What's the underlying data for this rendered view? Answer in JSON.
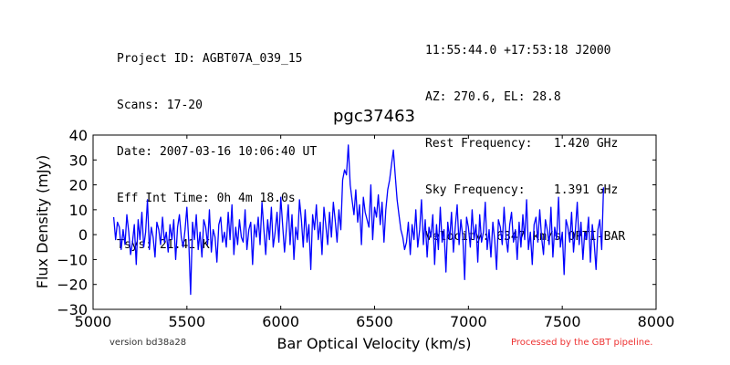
{
  "header_left": [
    "Project ID: AGBT07A_039_15",
    "Scans: 17-20",
    "Date: 2007-03-16 10:06:40 UT",
    "Eff Int Time: 0h 4m 18.0s",
    "Tsys: 21.41 K"
  ],
  "header_right": [
    "11:55:44.0 +17:53:18 J2000",
    "AZ: 270.6, EL: 28.8",
    "Rest Frequency:   1.420 GHz",
    "Sky Frequency:    1.391 GHz",
    "Velocity: 6347 km/s OPTI-BAR"
  ],
  "footer": {
    "version": "version bd38a28",
    "pipeline": "Processed by the GBT pipeline."
  },
  "colors": {
    "line": "#0000ff",
    "footer_version": "#333333",
    "footer_pipeline": "#ee3333"
  },
  "chart_data": {
    "type": "line",
    "title": "pgc37463",
    "xlabel": "Bar Optical Velocity (km/s)",
    "ylabel": "Flux Density (mJy)",
    "xlim": [
      5000,
      8000
    ],
    "ylim": [
      -30,
      40
    ],
    "xticks": [
      5000,
      5500,
      6000,
      6500,
      7000,
      7500,
      8000
    ],
    "yticks": [
      -30,
      -20,
      -10,
      0,
      10,
      20,
      30,
      40
    ],
    "grid": false,
    "series": [
      {
        "x_start": 5110,
        "x_step": 10,
        "y": [
          7,
          -2,
          5,
          3,
          -6,
          2,
          -4,
          8,
          1,
          -8,
          -3,
          4,
          -12,
          6,
          -2,
          9,
          -5,
          1,
          14,
          -6,
          3,
          -1,
          -9,
          5,
          2,
          -4,
          7,
          -3,
          1,
          -7,
          4,
          -2,
          6,
          -10,
          3,
          8,
          -1,
          -5,
          2,
          11,
          -3,
          -24,
          5,
          -2,
          8,
          -6,
          1,
          -9,
          6,
          3,
          -4,
          10,
          -7,
          2,
          -1,
          -11,
          4,
          7,
          -3,
          1,
          -5,
          9,
          -2,
          12,
          -8,
          3,
          -4,
          6,
          -1,
          -3,
          10,
          -6,
          2,
          5,
          -12,
          4,
          -1,
          7,
          -4,
          13,
          2,
          -8,
          6,
          -2,
          11,
          -5,
          1,
          9,
          -3,
          15,
          4,
          -7,
          2,
          12,
          -4,
          8,
          -10,
          3,
          -2,
          14,
          6,
          -5,
          10,
          -3,
          4,
          -14,
          8,
          2,
          12,
          -2,
          5,
          -8,
          11,
          4,
          -4,
          9,
          -1,
          13,
          6,
          -3,
          10,
          2,
          22,
          26,
          24,
          36,
          20,
          14,
          8,
          18,
          5,
          12,
          -4,
          15,
          9,
          6,
          3,
          20,
          -2,
          11,
          7,
          16,
          4,
          13,
          -3,
          10,
          18,
          22,
          28,
          34,
          24,
          14,
          8,
          2,
          -1,
          -6,
          -3,
          5,
          -8,
          4,
          -2,
          10,
          -5,
          2,
          14,
          -4,
          6,
          -9,
          3,
          -1,
          8,
          -12,
          4,
          -6,
          11,
          -3,
          2,
          -15,
          5,
          -2,
          9,
          -7,
          3,
          12,
          -4,
          6,
          -1,
          -18,
          7,
          3,
          -5,
          10,
          -2,
          4,
          -11,
          8,
          -3,
          1,
          13,
          -6,
          2,
          -9,
          5,
          -2,
          -14,
          6,
          3,
          -4,
          11,
          -1,
          -7,
          4,
          9,
          -3,
          2,
          -10,
          5,
          -5,
          8,
          -2,
          14,
          -6,
          1,
          -12,
          4,
          7,
          -3,
          10,
          -1,
          -8,
          6,
          2,
          -4,
          11,
          -9,
          3,
          -2,
          15,
          -5,
          1,
          -16,
          6,
          3,
          -3,
          9,
          -7,
          2,
          13,
          -4,
          5,
          -10,
          1,
          -2,
          7,
          -11,
          4,
          -3,
          -14,
          2,
          6,
          -6,
          19
        ]
      }
    ]
  }
}
